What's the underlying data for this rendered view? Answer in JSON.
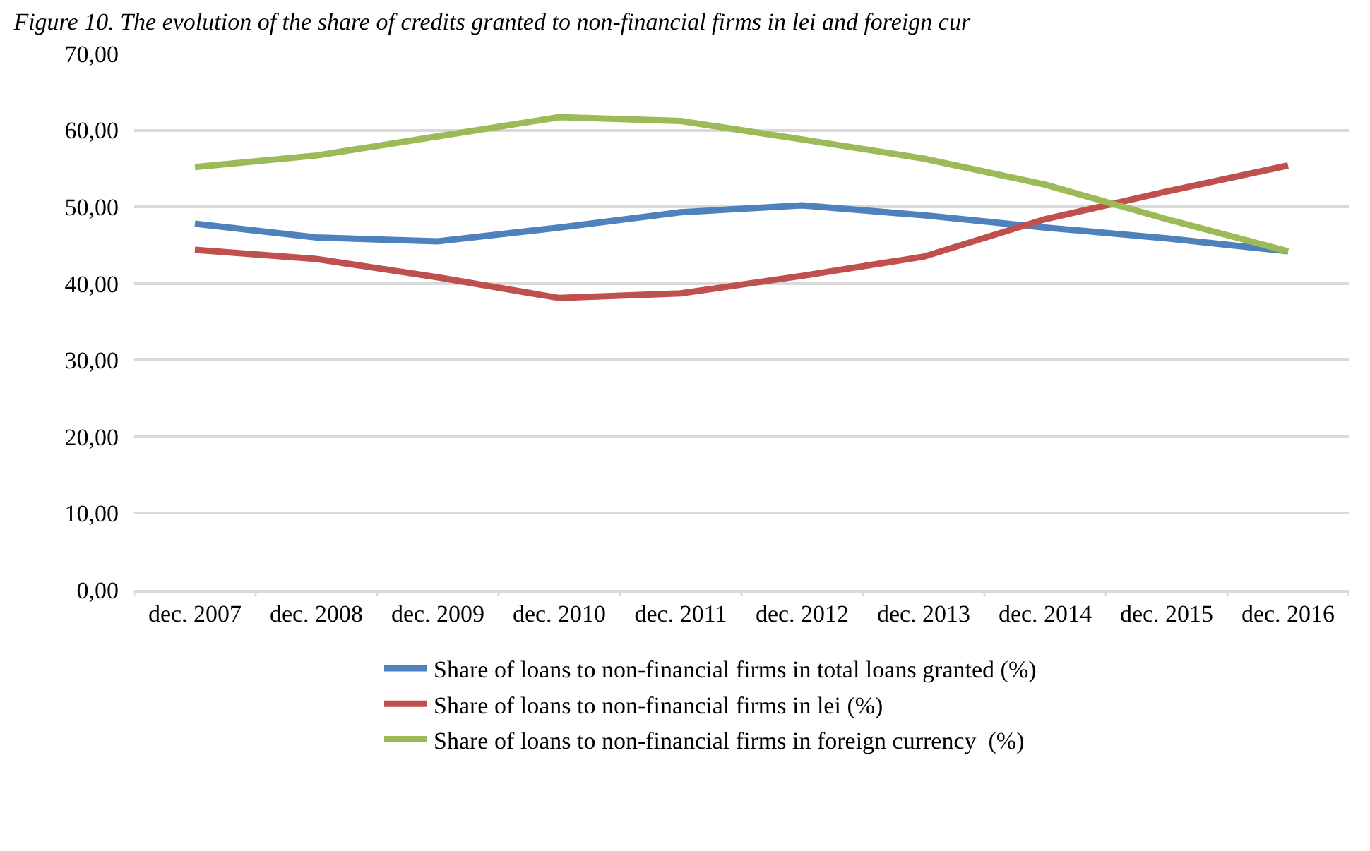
{
  "chart_data": {
    "type": "line",
    "title": "Figure 10. The evolution of the share of credits granted to non-financial firms in lei and foreign cur",
    "categories": [
      "dec. 2007",
      "dec. 2008",
      "dec. 2009",
      "dec. 2010",
      "dec. 2011",
      "dec. 2012",
      "dec. 2013",
      "dec. 2014",
      "dec. 2015",
      "dec. 2016"
    ],
    "series": [
      {
        "name": "Share of loans to non-financial firms in total loans granted (%)",
        "color": "#4f81bd",
        "values": [
          47.8,
          46.0,
          45.5,
          47.3,
          49.3,
          50.2,
          48.9,
          47.3,
          45.9,
          44.2
        ]
      },
      {
        "name": "Share of loans to non-financial firms in lei (%)",
        "color": "#c0504d",
        "values": [
          44.4,
          43.2,
          40.8,
          38.1,
          38.7,
          41.0,
          43.5,
          48.4,
          52.0,
          55.4
        ]
      },
      {
        "name": "Share of loans to non-financial firms in foreign currency  (%)",
        "color": "#9bbb59",
        "values": [
          55.2,
          56.7,
          59.2,
          61.7,
          61.2,
          58.8,
          56.3,
          52.9,
          48.4,
          44.2
        ]
      }
    ],
    "ylim": [
      0,
      70
    ],
    "yticks": [
      {
        "value": 0,
        "label": "0,00"
      },
      {
        "value": 10,
        "label": "10,00"
      },
      {
        "value": 20,
        "label": "20,00"
      },
      {
        "value": 30,
        "label": "30,00"
      },
      {
        "value": 40,
        "label": "40,00"
      },
      {
        "value": 50,
        "label": "50,00"
      },
      {
        "value": 60,
        "label": "60,00"
      },
      {
        "value": 70,
        "label": "70,00"
      }
    ],
    "grid": "y",
    "legend": "bottom",
    "marker": "none",
    "line_style": "solid"
  }
}
